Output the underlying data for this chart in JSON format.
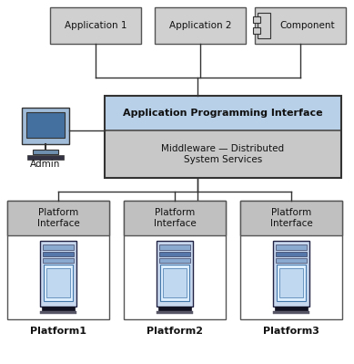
{
  "bg_color": "#ffffff",
  "app1_label": "Application 1",
  "app2_label": "Application 2",
  "component_label": "Component",
  "api_label": "Application Programming Interface",
  "middleware_label": "Middleware — Distributed\nSystem Services",
  "admin_label": "Admin",
  "platforms": [
    "Platform1",
    "Platform2",
    "Platform3"
  ],
  "platform_interface_label": "Platform\nInterface",
  "box_fill_gray": "#d0d0d0",
  "box_fill_light_blue": "#b8d0e8",
  "box_fill_mid_gray": "#c8c8c8",
  "box_stroke": "#555555",
  "platform_box_fill": "#ffffff",
  "platform_header_fill": "#c0c0c0",
  "server_body": "#c8d8ee",
  "server_dark_stripe": "#5577aa",
  "server_mid_stripe": "#8aaad0",
  "server_light_area": "#ddeeff",
  "server_border": "#222244",
  "monitor_screen": "#4470a0",
  "monitor_body": "#a0bcd8",
  "monitor_base": "#7090b0",
  "line_color": "#333333",
  "comp_sym_fill": "#d0d0d0"
}
